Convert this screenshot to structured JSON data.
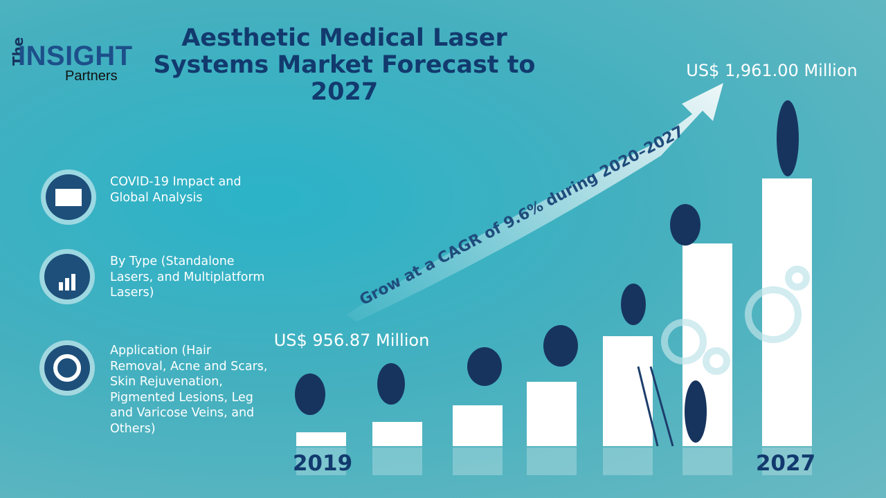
{
  "logo": {
    "the": "The",
    "insight": "INSIGHT",
    "partners": "Partners"
  },
  "title": "Aesthetic Medical Laser Systems Market Forecast to 2027",
  "items": [
    "COVID-19 Impact and Global Analysis",
    "By Type (Standalone Lasers, and Multiplatform Lasers)",
    "Application (Hair Removal, Acne and Scars, Skin Rejuvenation, Pigmented Lesions, Leg and Varicose Veins, and Others)"
  ],
  "start": {
    "year": "2019",
    "value": "US$ 956.87 Million"
  },
  "end": {
    "year": "2027",
    "value": "US$ 1,961.00 Million"
  },
  "cagr": "Grow at a CAGR of 9.6% during 2020–2027"
}
